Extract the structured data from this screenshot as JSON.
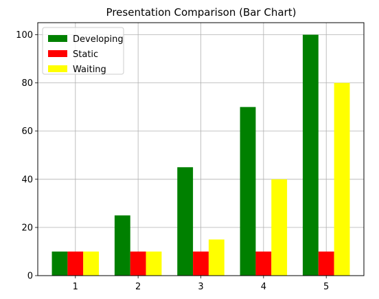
{
  "chart_data": {
    "type": "bar",
    "title": "Presentation Comparison (Bar Chart)",
    "xlabel": "",
    "ylabel": "",
    "categories": [
      "1",
      "2",
      "3",
      "4",
      "5"
    ],
    "series": [
      {
        "name": "Developing",
        "color": "#008000",
        "values": [
          10,
          25,
          45,
          70,
          100
        ]
      },
      {
        "name": "Static",
        "color": "#ff0000",
        "values": [
          10,
          10,
          10,
          10,
          10
        ]
      },
      {
        "name": "Waiting",
        "color": "#ffff00",
        "values": [
          10,
          10,
          15,
          40,
          80
        ]
      }
    ],
    "ylim": [
      0,
      105
    ],
    "yticks": [
      0,
      20,
      40,
      60,
      80,
      100
    ],
    "grid": true,
    "legend_position": "top-left"
  }
}
